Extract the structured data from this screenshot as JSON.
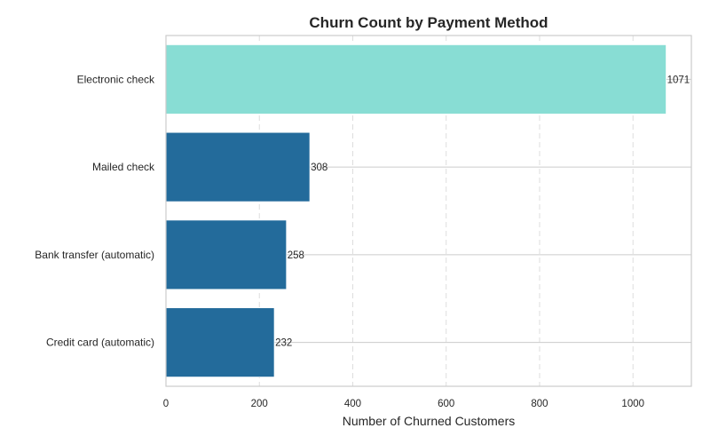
{
  "chart_data": {
    "type": "bar",
    "orientation": "horizontal",
    "title": "Churn Count by Payment Method",
    "xlabel": "Number of Churned Customers",
    "ylabel": "",
    "categories": [
      "Electronic check",
      "Mailed check",
      "Bank transfer (automatic)",
      "Credit card (automatic)"
    ],
    "values": [
      1071,
      308,
      258,
      232
    ],
    "data_labels": [
      "1071",
      "308",
      "258",
      "232"
    ],
    "xlim": [
      0,
      1125
    ],
    "xticks": [
      0,
      200,
      400,
      600,
      800,
      1000
    ],
    "xtick_labels": [
      "0",
      "200",
      "400",
      "600",
      "800",
      "1000"
    ],
    "grid": true,
    "highlight_color": "#88ddd4",
    "bar_color": "#236b9b",
    "highlight_index": 0
  }
}
